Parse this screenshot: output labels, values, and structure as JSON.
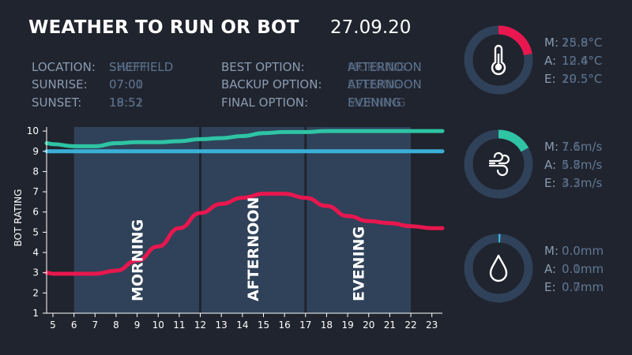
{
  "header": {
    "title": "WEATHER TO RUN OR BOT",
    "date": "27.09.20"
  },
  "info": {
    "location_label": "LOCATION:",
    "location_value": "SHEFFIELD",
    "location_ghost": "SWEFF",
    "sunrise_label": "SUNRISE:",
    "sunrise_value": "07:00",
    "sunrise_ghost": "07:01",
    "sunset_label": "SUNSET:",
    "sunset_value": "18:52",
    "sunset_ghost": "19:51",
    "best_label": "BEST OPTION:",
    "best_value": "AFTERNOON",
    "best_ghost": "MORNING",
    "backup_label": "BACKUP OPTION:",
    "backup_value": "AFTERNOON",
    "backup_ghost": "EVENING",
    "final_label": "FINAL OPTION:",
    "final_value": "EVENING",
    "final_ghost": "MORNING"
  },
  "metrics": [
    {
      "icon": "thermometer-icon",
      "accent": "#e8174f",
      "fraction": 0.22,
      "m_label": "M:",
      "m_value": "25.8°C",
      "m_ghost": "18.9°C",
      "a_label": "A:",
      "a_value": "12.4°C",
      "a_ghost": "10.6°C",
      "e_label": "E:",
      "e_value": "20.5°C",
      "e_ghost": "19.5°C"
    },
    {
      "icon": "wind-icon",
      "accent": "#2ec4a4",
      "fraction": 0.17,
      "m_label": "M:",
      "m_value": "7.6m/s",
      "m_ghost": "1.1m/s",
      "a_label": "A:",
      "a_value": "5.8m/s",
      "a_ghost": "4.7m/s",
      "e_label": "E:",
      "e_value": "3.3m/s",
      "e_ghost": "4.2m/s"
    },
    {
      "icon": "raindrop-icon",
      "accent": "#3ab0d8",
      "fraction": 0.01,
      "m_label": "M:",
      "m_value": "0.0mm",
      "m_ghost": "0.0mm",
      "a_label": "A:",
      "a_value": "0.0mm",
      "a_ghost": "0.1mm",
      "e_label": "E:",
      "e_value": "0.7mm",
      "e_ghost": "0.0mm"
    }
  ],
  "colors": {
    "background": "#20242e",
    "panel": "#2f4259",
    "red": "#e8174f",
    "teal": "#2ec4a4",
    "blue": "#3ab0d8",
    "text": "#ffffff",
    "muted": "#8a9bb0"
  },
  "chart_data": {
    "type": "line",
    "ylabel": "BOT RATING",
    "xlim": [
      4.7,
      23.5
    ],
    "ylim": [
      1,
      10.2
    ],
    "x_ticks": [
      5,
      6,
      7,
      8,
      9,
      10,
      11,
      12,
      13,
      14,
      15,
      16,
      17,
      18,
      19,
      20,
      21,
      22,
      23
    ],
    "y_ticks": [
      1,
      2,
      3,
      4,
      5,
      6,
      7,
      8,
      9,
      10
    ],
    "periods": [
      {
        "name": "MORNING",
        "start": 6,
        "end": 12
      },
      {
        "name": "AFTERNOON",
        "start": 12,
        "end": 17
      },
      {
        "name": "EVENING",
        "start": 17,
        "end": 22
      }
    ],
    "series": [
      {
        "color": "#2ec4a4",
        "x": [
          4.7,
          5,
          6,
          7,
          8,
          9,
          10,
          11,
          12,
          13,
          14,
          15,
          16,
          17,
          18,
          19,
          20,
          21,
          22,
          23,
          23.5
        ],
        "y": [
          9.4,
          9.35,
          9.25,
          9.25,
          9.4,
          9.45,
          9.45,
          9.5,
          9.6,
          9.65,
          9.75,
          9.9,
          9.95,
          9.95,
          10,
          10,
          10,
          10,
          10,
          10,
          10
        ]
      },
      {
        "color": "#3ab0d8",
        "x": [
          4.7,
          23.5
        ],
        "y": [
          9.0,
          9.0
        ]
      },
      {
        "color": "#e8174f",
        "x": [
          4.7,
          5,
          6,
          7,
          8,
          9,
          10,
          11,
          12,
          13,
          14,
          15,
          16,
          17,
          18,
          19,
          20,
          21,
          22,
          23,
          23.5
        ],
        "y": [
          3.0,
          2.95,
          2.95,
          2.95,
          3.1,
          3.6,
          4.3,
          5.2,
          5.95,
          6.4,
          6.7,
          6.9,
          6.9,
          6.7,
          6.3,
          5.8,
          5.55,
          5.45,
          5.3,
          5.2,
          5.2
        ]
      }
    ]
  }
}
